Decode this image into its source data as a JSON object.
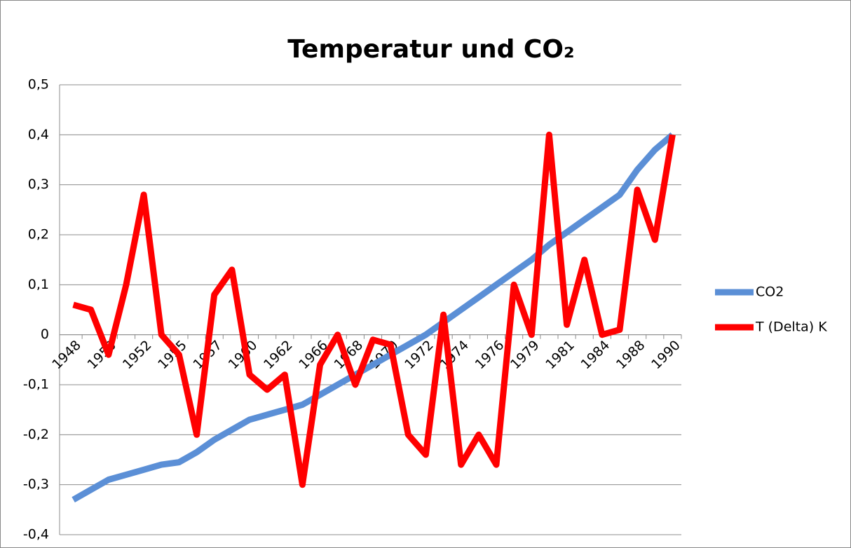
{
  "chart_data": {
    "type": "line",
    "title": "Temperatur und CO₂",
    "categories": [
      "1948",
      null,
      "1950",
      null,
      "1952",
      null,
      "1955",
      null,
      "1957",
      null,
      "1960",
      null,
      "1962",
      null,
      "1966",
      null,
      "1968",
      null,
      "1970",
      null,
      "1972",
      null,
      "1974",
      null,
      "1976",
      null,
      "1979",
      null,
      "1981",
      null,
      "1984",
      null,
      "1988",
      null,
      "1990"
    ],
    "series": [
      {
        "name": "CO2",
        "color": "#5b8fd6",
        "values": [
          -0.33,
          -0.31,
          -0.29,
          -0.28,
          -0.27,
          -0.26,
          -0.255,
          -0.235,
          -0.21,
          -0.19,
          -0.17,
          -0.16,
          -0.15,
          -0.14,
          -0.12,
          -0.1,
          -0.08,
          -0.06,
          -0.04,
          -0.02,
          0.0,
          0.025,
          0.05,
          0.075,
          0.1,
          0.125,
          0.15,
          0.18,
          0.205,
          0.23,
          0.255,
          0.28,
          0.33,
          0.37,
          0.4
        ]
      },
      {
        "name": "T (Delta) K",
        "color": "#ff0000",
        "values": [
          0.06,
          0.05,
          -0.04,
          0.1,
          0.28,
          0.0,
          -0.04,
          -0.2,
          0.08,
          0.13,
          -0.08,
          -0.11,
          -0.08,
          -0.3,
          -0.06,
          0.0,
          -0.1,
          -0.01,
          -0.02,
          -0.2,
          -0.24,
          0.04,
          -0.26,
          -0.2,
          -0.26,
          0.1,
          0.0,
          0.4,
          0.02,
          0.15,
          0.0,
          0.01,
          0.29,
          0.19,
          0.4
        ]
      }
    ],
    "ylim": [
      -0.4,
      0.5
    ],
    "yticks": [
      {
        "value": -0.4,
        "label": "-0,4"
      },
      {
        "value": -0.3,
        "label": "-0,3"
      },
      {
        "value": -0.2,
        "label": "-0,2"
      },
      {
        "value": -0.1,
        "label": "-0,1"
      },
      0,
      {
        "value": 0.1,
        "label": "0,1"
      },
      {
        "value": 0.2,
        "label": "0,2"
      },
      {
        "value": 0.3,
        "label": "0,3"
      },
      {
        "value": 0.4,
        "label": "0,4"
      },
      {
        "value": 0.5,
        "label": "0,5"
      }
    ],
    "grid": true,
    "legend": "right"
  }
}
